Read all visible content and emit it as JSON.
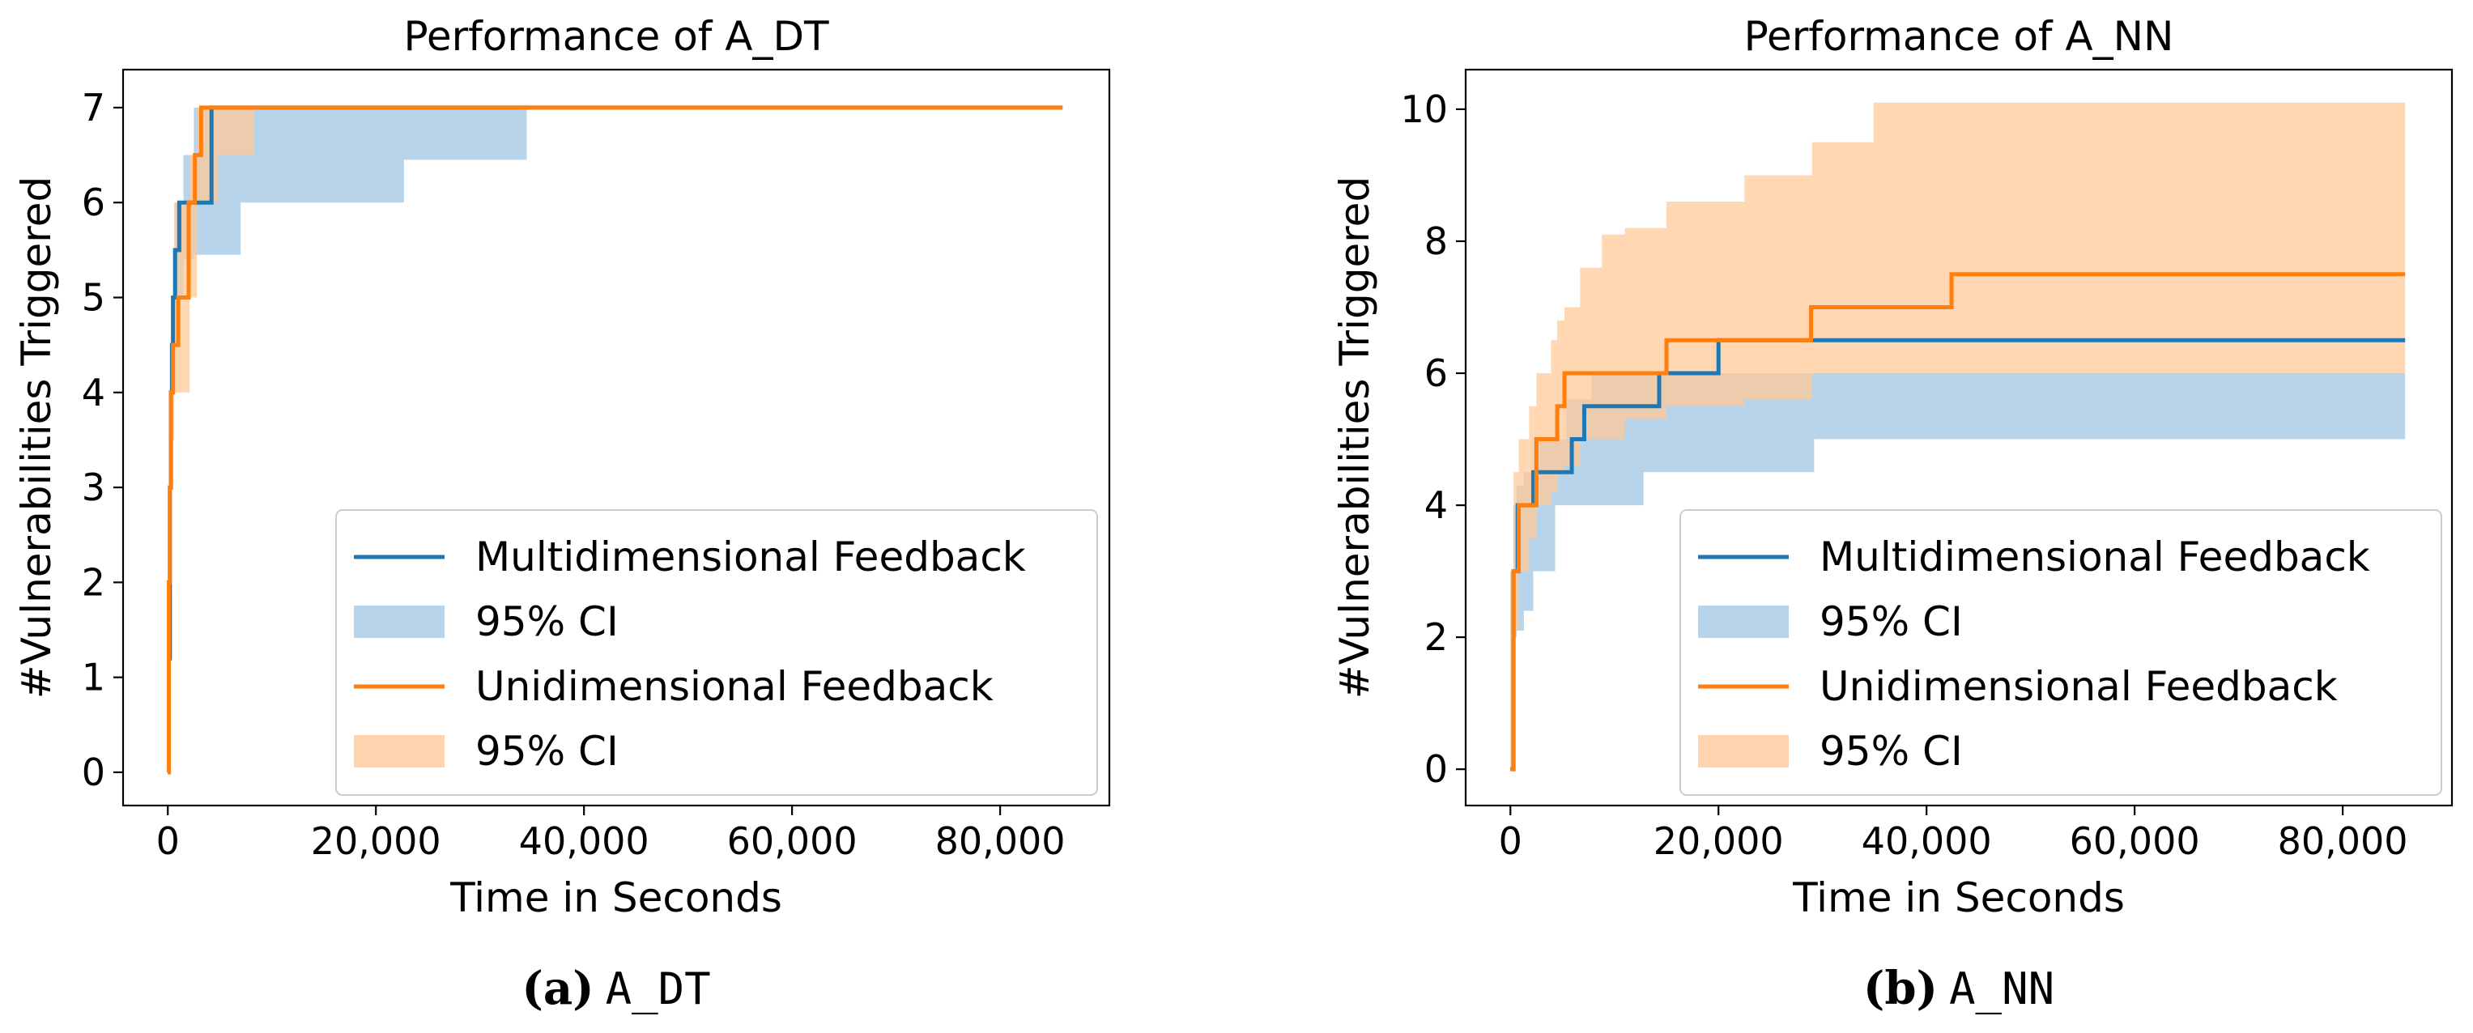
{
  "colors": {
    "multi": "#1f77b4",
    "uni": "#ff7f0e",
    "multi_ci": "#a6c9e5",
    "uni_ci": "#ffc99a"
  },
  "legend": {
    "multi_label": "Multidimensional Feedback",
    "multi_ci_label": "95% CI",
    "uni_label": "Unidimensional Feedback",
    "uni_ci_label": "95% CI"
  },
  "captions": [
    {
      "tag": "(a)",
      "name": "A_DT"
    },
    {
      "tag": "(b)",
      "name": "A_NN"
    }
  ],
  "chart_data": [
    {
      "type": "line",
      "title": "Performance of A_DT",
      "xlabel": "Time in Seconds",
      "ylabel": "#Vulnerabilities Triggered",
      "xlim": [
        -4300,
        90500
      ],
      "ylim": [
        -0.35,
        7.4
      ],
      "xticks": [
        0,
        20000,
        40000,
        60000,
        80000
      ],
      "xtick_labels": [
        "0",
        "20,000",
        "40,000",
        "60,000",
        "80,000"
      ],
      "yticks": [
        0,
        1,
        2,
        3,
        4,
        5,
        6,
        7
      ],
      "ytick_labels": [
        "0",
        "1",
        "2",
        "3",
        "4",
        "5",
        "6",
        "7"
      ],
      "series": [
        {
          "name": "Multidimensional Feedback",
          "x": [
            0,
            100,
            200,
            300,
            400,
            500,
            700,
            900,
            1100,
            1400,
            4200,
            86000
          ],
          "y": [
            0,
            1.2,
            3,
            4,
            4.5,
            5,
            5.5,
            5.5,
            6,
            6,
            7,
            7
          ],
          "ci_low": [
            0,
            0.3,
            2,
            3,
            4,
            4.5,
            5,
            5,
            5.4,
            5.45,
            6.0,
            6.45,
            6.45
          ],
          "ci_high": [
            1.2,
            3,
            4,
            4.5,
            5,
            5.5,
            6,
            6,
            6.5,
            7,
            7,
            7,
            7
          ],
          "ci_x": [
            0,
            100,
            200,
            300,
            400,
            500,
            700,
            1100,
            1500,
            2500,
            7000,
            22700,
            34500
          ]
        },
        {
          "name": "Unidimensional Feedback",
          "x": [
            0,
            100,
            200,
            300,
            500,
            1000,
            2000,
            2600,
            3200,
            86000
          ],
          "y": [
            0,
            2,
            3,
            4,
            4.5,
            5,
            6,
            6.5,
            7,
            7
          ],
          "ci_low": [
            0,
            1,
            2,
            3.5,
            4,
            5,
            6,
            6.5,
            7
          ],
          "ci_high": [
            2,
            3,
            4,
            5,
            6,
            6.5,
            7,
            7,
            7
          ],
          "ci_x": [
            0,
            100,
            200,
            300,
            600,
            2100,
            2800,
            4800,
            8300
          ]
        }
      ]
    },
    {
      "type": "line",
      "title": "Performance of A_NN",
      "xlabel": "Time in Seconds",
      "ylabel": "#Vulnerabilities Triggered",
      "xlim": [
        -4300,
        90500
      ],
      "ylim": [
        -0.55,
        10.6
      ],
      "xticks": [
        0,
        20000,
        40000,
        60000,
        80000
      ],
      "xtick_labels": [
        "0",
        "20,000",
        "40,000",
        "60,000",
        "80,000"
      ],
      "yticks": [
        0,
        2,
        4,
        6,
        8,
        10
      ],
      "ytick_labels": [
        "0",
        "2",
        "4",
        "6",
        "8",
        "10"
      ],
      "series": [
        {
          "name": "Multidimensional Feedback",
          "x": [
            0,
            300,
            700,
            1200,
            2200,
            4200,
            5900,
            7100,
            14300,
            16000,
            20000,
            86000
          ],
          "y": [
            0,
            3,
            4,
            4,
            4.5,
            4.5,
            5,
            5.5,
            6,
            6,
            6.5,
            6.5
          ],
          "ci_x": [
            0,
            300,
            600,
            1300,
            2200,
            4300,
            5400,
            7800,
            12800,
            29200,
            86000
          ],
          "ci_low": [
            0,
            2,
            2.1,
            2.4,
            3,
            4,
            4,
            4,
            4.5,
            5,
            5
          ],
          "ci_high": [
            3,
            4,
            4.3,
            4.5,
            5,
            5,
            5.6,
            6,
            6,
            6,
            6
          ]
        },
        {
          "name": "Unidimensional Feedback",
          "x": [
            0,
            300,
            800,
            1800,
            2500,
            3900,
            4500,
            5200,
            15000,
            28900,
            42400,
            86000
          ],
          "y": [
            0,
            3,
            4,
            4,
            5,
            5,
            5.5,
            6,
            6.5,
            7,
            7.5,
            7.5
          ],
          "ci_x": [
            0,
            300,
            800,
            1800,
            2500,
            3900,
            4500,
            5200,
            6700,
            8800,
            11000,
            15000,
            22500,
            29000,
            34900,
            40200,
            86000
          ],
          "ci_low": [
            0,
            2.1,
            3,
            3.5,
            4,
            4.2,
            4.5,
            4.6,
            5,
            5,
            5.3,
            5.5,
            5.6,
            6,
            6,
            6,
            6
          ],
          "ci_high": [
            3,
            4.5,
            5,
            5.5,
            6,
            6.5,
            6.8,
            7,
            7.6,
            8.1,
            8.2,
            8.6,
            9,
            9.5,
            10.1,
            10.1,
            10.1
          ]
        }
      ]
    }
  ]
}
